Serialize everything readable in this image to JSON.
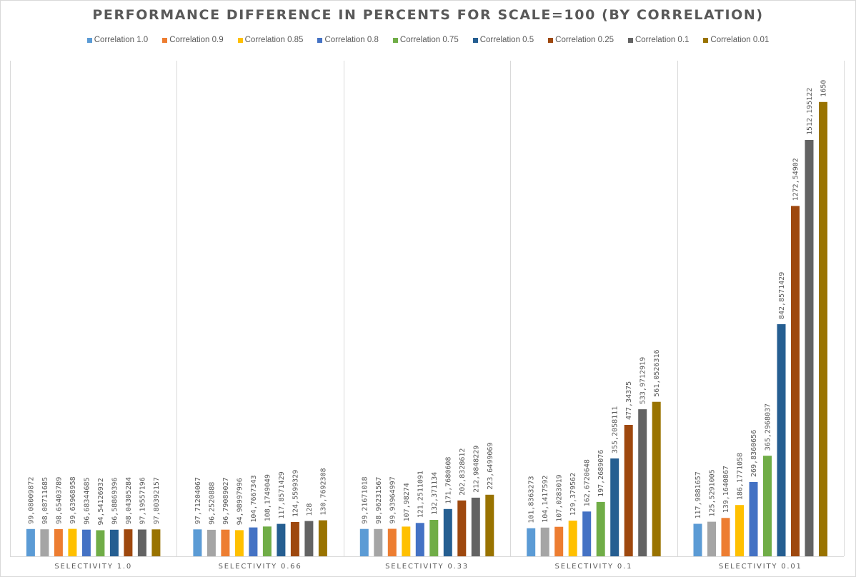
{
  "chart_data": {
    "type": "bar",
    "title": "PERFORMANCE DIFFERENCE IN PERCENTS FOR SCALE=100 (BY CORRELATION)",
    "xlabel": "",
    "ylabel": "",
    "ylim": [
      0,
      1800
    ],
    "grid": "vertical category separators only",
    "legend_position": "top",
    "categories": [
      "SELECTIVITY 1.0",
      "SELECTIVITY 0.66",
      "SELECTIVITY 0.33",
      "SELECTIVITY 0.1",
      "SELECTIVITY 0.01"
    ],
    "series": [
      {
        "name": "Correlation 1.0",
        "color": "#5b9bd5",
        "in_legend": true,
        "values": [
          99.08009872,
          97.71204067,
          99.21671018,
          101.8363273,
          117.9881657
        ],
        "labels": [
          "99,08009872",
          "97,71204067",
          "99,21671018",
          "101,8363273",
          "117,9881657"
        ]
      },
      {
        "name": "",
        "color": "#a5a5a5",
        "in_legend": false,
        "values": [
          98.08711685,
          96.2520888,
          98.96231567,
          104.1417592,
          125.5291005
        ],
        "labels": [
          "98,08711685",
          "96,2520888",
          "98,96231567",
          "104,1417592",
          "125,5291005"
        ]
      },
      {
        "name": "Correlation 0.9",
        "color": "#ed7d31",
        "in_legend": true,
        "values": [
          98.65403789,
          96.79089027,
          99.93964997,
          107.0283019,
          139.1640867
        ],
        "labels": [
          "98,65403789",
          "96,79089027",
          "99,93964997",
          "107,0283019",
          "139,1640867"
        ]
      },
      {
        "name": "Correlation 0.85",
        "color": "#ffc000",
        "in_legend": true,
        "values": [
          99.63968958,
          94.98997996,
          107.98274,
          129.379562,
          186.1771058
        ],
        "labels": [
          "99,63968958",
          "94,98997996",
          "107,98274",
          "129,379562",
          "186,1771058"
        ]
      },
      {
        "name": "Correlation 0.8",
        "color": "#4472c4",
        "in_legend": true,
        "values": [
          96.68344685,
          104.7667343,
          121.2511091,
          162.6720648,
          269.8360656
        ],
        "labels": [
          "96,68344685",
          "104,7667343",
          "121,2511091",
          "162,6720648",
          "269,8360656"
        ]
      },
      {
        "name": "Correlation 0.75",
        "color": "#70ad47",
        "in_legend": true,
        "values": [
          94.54126932,
          108.1749049,
          132.371134,
          197.2689076,
          365.2968037
        ],
        "labels": [
          "94,54126932",
          "108,1749049",
          "132,371134",
          "197,2689076",
          "365,2968037"
        ]
      },
      {
        "name": "Correlation 0.5",
        "color": "#255e91",
        "in_legend": true,
        "values": [
          96.58869396,
          117.8571429,
          171.7680608,
          355.2058111,
          842.8571429
        ],
        "labels": [
          "96,58869396",
          "117,8571429",
          "171,7680608",
          "355,2058111",
          "842,8571429"
        ]
      },
      {
        "name": "Correlation 0.25",
        "color": "#9e480e",
        "in_legend": true,
        "values": [
          98.04305284,
          124.5599329,
          202.8328612,
          477.34375,
          1272.54902
        ],
        "labels": [
          "98,04305284",
          "124,5599329",
          "202,8328612",
          "477,34375",
          "1272,54902"
        ]
      },
      {
        "name": "Correlation 0.1",
        "color": "#636363",
        "in_legend": true,
        "values": [
          97.19557196,
          128,
          212.9848229,
          533.9712919,
          1512.195122
        ],
        "labels": [
          "97,19557196",
          "128",
          "212,9848229",
          "533,9712919",
          "1512,195122"
        ]
      },
      {
        "name": "Correlation 0.01",
        "color": "#997300",
        "in_legend": true,
        "values": [
          97.80392157,
          130.7692308,
          223.6499069,
          561.0526316,
          1650
        ],
        "labels": [
          "97,80392157",
          "130,7692308",
          "223,6499069",
          "561,0526316",
          "1650"
        ]
      }
    ]
  }
}
